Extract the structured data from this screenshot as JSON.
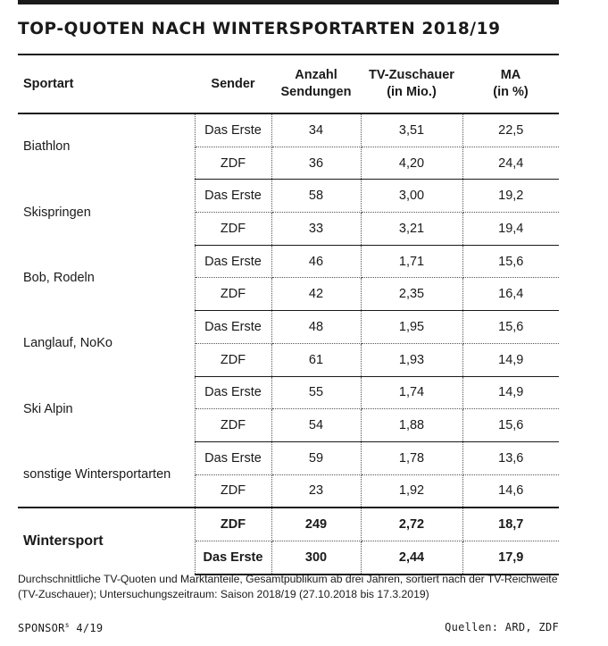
{
  "title": "TOP-QUOTEN NACH WINTERSPORTARTEN 2018/19",
  "headers": {
    "sportart": "Sportart",
    "sender": "Sender",
    "anzahl_1": "Anzahl",
    "anzahl_2": "Sendungen",
    "tv_1": "TV-Zuschauer",
    "tv_2": "(in Mio.)",
    "ma_1": "MA",
    "ma_2": "(in %)"
  },
  "rows": [
    {
      "sport": "Biathlon",
      "entries": [
        {
          "sender": "Das Erste",
          "anzahl": "34",
          "zuschauer": "3,51",
          "ma": "22,5"
        },
        {
          "sender": "ZDF",
          "anzahl": "36",
          "zuschauer": "4,20",
          "ma": "24,4"
        }
      ]
    },
    {
      "sport": "Skispringen",
      "entries": [
        {
          "sender": "Das Erste",
          "anzahl": "58",
          "zuschauer": "3,00",
          "ma": "19,2"
        },
        {
          "sender": "ZDF",
          "anzahl": "33",
          "zuschauer": "3,21",
          "ma": "19,4"
        }
      ]
    },
    {
      "sport": "Bob, Rodeln",
      "entries": [
        {
          "sender": "Das Erste",
          "anzahl": "46",
          "zuschauer": "1,71",
          "ma": "15,6"
        },
        {
          "sender": "ZDF",
          "anzahl": "42",
          "zuschauer": "2,35",
          "ma": "16,4"
        }
      ]
    },
    {
      "sport": "Langlauf, NoKo",
      "entries": [
        {
          "sender": "Das Erste",
          "anzahl": "48",
          "zuschauer": "1,95",
          "ma": "15,6"
        },
        {
          "sender": "ZDF",
          "anzahl": "61",
          "zuschauer": "1,93",
          "ma": "14,9"
        }
      ]
    },
    {
      "sport": "Ski Alpin",
      "entries": [
        {
          "sender": "Das Erste",
          "anzahl": "55",
          "zuschauer": "1,74",
          "ma": "14,9"
        },
        {
          "sender": "ZDF",
          "anzahl": "54",
          "zuschauer": "1,88",
          "ma": "15,6"
        }
      ]
    },
    {
      "sport": "sonstige Wintersportarten",
      "entries": [
        {
          "sender": "Das Erste",
          "anzahl": "59",
          "zuschauer": "1,78",
          "ma": "13,6"
        },
        {
          "sender": "ZDF",
          "anzahl": "23",
          "zuschauer": "1,92",
          "ma": "14,6"
        }
      ]
    }
  ],
  "total": {
    "label": "Wintersport",
    "entries": [
      {
        "sender": "ZDF",
        "anzahl": "249",
        "zuschauer": "2,72",
        "ma": "18,7"
      },
      {
        "sender": "Das Erste",
        "anzahl": "300",
        "zuschauer": "2,44",
        "ma": "17,9"
      }
    ]
  },
  "footnote_1": "Durchschnittliche TV-Quoten und Marktanteile, Gesamtpublikum ab drei Jahren, sortiert nach der TV-Reichweite",
  "footnote_2": "(TV-Zuschauer); Untersuchungszeitraum: Saison 2018/19 (27.10.2018 bis 17.3.2019)",
  "source_left": "SPONSOR",
  "source_sup": "s",
  "source_issue": " 4/19",
  "source_right": "Quellen: ARD, ZDF"
}
